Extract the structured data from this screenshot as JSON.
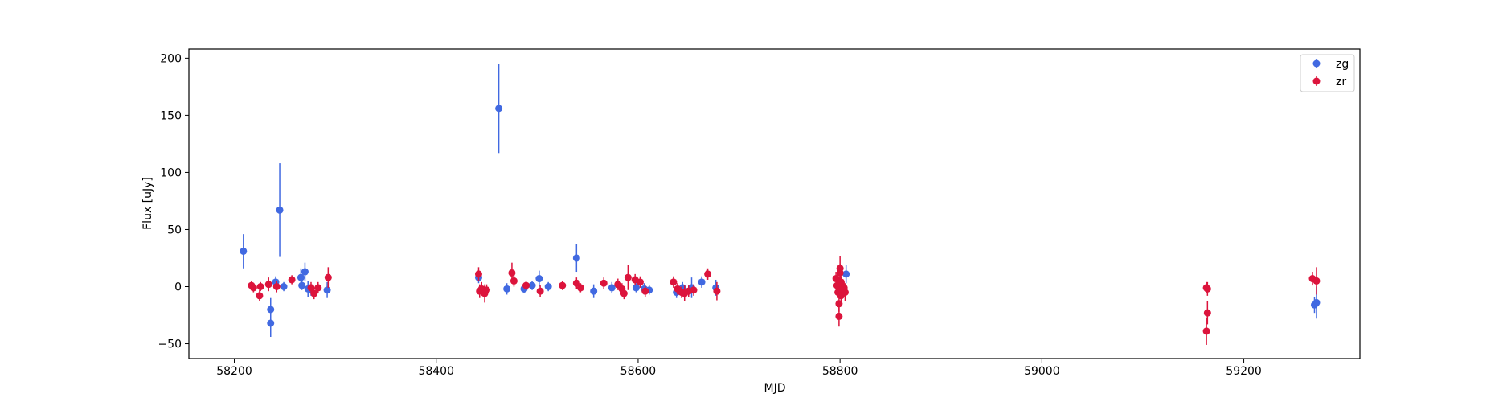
{
  "chart_data": {
    "type": "scatter",
    "xlabel": "MJD",
    "ylabel": "Flux [uJy]",
    "xlim": [
      58155,
      59315
    ],
    "ylim": [
      -63,
      208
    ],
    "x_ticks": [
      58200,
      58400,
      58600,
      58800,
      59000,
      59200
    ],
    "y_ticks": [
      -50,
      0,
      50,
      100,
      150,
      200
    ],
    "grid": false,
    "legend_position": "top-right",
    "series": [
      {
        "name": "zg",
        "color": "#4169E1",
        "points": [
          {
            "x": 58209,
            "y": 31,
            "err": 15
          },
          {
            "x": 58236,
            "y": -20,
            "err": 10
          },
          {
            "x": 58236,
            "y": -32,
            "err": 12
          },
          {
            "x": 58241,
            "y": 4,
            "err": 5
          },
          {
            "x": 58245,
            "y": 67,
            "err": 41
          },
          {
            "x": 58249,
            "y": 0,
            "err": 4
          },
          {
            "x": 58266,
            "y": 8,
            "err": 8
          },
          {
            "x": 58270,
            "y": 13,
            "err": 8
          },
          {
            "x": 58273,
            "y": -2,
            "err": 7
          },
          {
            "x": 58276,
            "y": -3,
            "err": 5
          },
          {
            "x": 58292,
            "y": -3,
            "err": 7
          },
          {
            "x": 58442,
            "y": 8,
            "err": 5
          },
          {
            "x": 58462,
            "y": 156,
            "err": 39
          },
          {
            "x": 58470,
            "y": -2,
            "err": 5
          },
          {
            "x": 58487,
            "y": -2,
            "err": 4
          },
          {
            "x": 58495,
            "y": 1,
            "err": 4
          },
          {
            "x": 58502,
            "y": 7,
            "err": 7
          },
          {
            "x": 58511,
            "y": 0,
            "err": 4
          },
          {
            "x": 58539,
            "y": 25,
            "err": 12
          },
          {
            "x": 58556,
            "y": -4,
            "err": 6
          },
          {
            "x": 58574,
            "y": -1,
            "err": 5
          },
          {
            "x": 58598,
            "y": -1,
            "err": 4
          },
          {
            "x": 58606,
            "y": -2,
            "err": 5
          },
          {
            "x": 58611,
            "y": -3,
            "err": 4
          },
          {
            "x": 58638,
            "y": -5,
            "err": 5
          },
          {
            "x": 58644,
            "y": -1,
            "err": 5
          },
          {
            "x": 58653,
            "y": -1,
            "err": 9
          },
          {
            "x": 58663,
            "y": 4,
            "err": 5
          },
          {
            "x": 58677,
            "y": -1,
            "err": 7
          },
          {
            "x": 58806,
            "y": 11,
            "err": 8
          },
          {
            "x": 58267,
            "y": 1,
            "err": 4
          },
          {
            "x": 59270,
            "y": -16,
            "err": 7
          },
          {
            "x": 59272,
            "y": -14,
            "err": 14
          }
        ]
      },
      {
        "name": "zr",
        "color": "#DC143C",
        "points": [
          {
            "x": 58217,
            "y": 1,
            "err": 4
          },
          {
            "x": 58219,
            "y": -1,
            "err": 4
          },
          {
            "x": 58225,
            "y": -8,
            "err": 5
          },
          {
            "x": 58226,
            "y": 0,
            "err": 4
          },
          {
            "x": 58234,
            "y": 2,
            "err": 6
          },
          {
            "x": 58242,
            "y": 0,
            "err": 5
          },
          {
            "x": 58257,
            "y": 6,
            "err": 4
          },
          {
            "x": 58276,
            "y": -1,
            "err": 5
          },
          {
            "x": 58279,
            "y": -6,
            "err": 5
          },
          {
            "x": 58283,
            "y": -1,
            "err": 5
          },
          {
            "x": 58293,
            "y": 8,
            "err": 9
          },
          {
            "x": 58442,
            "y": 11,
            "err": 6
          },
          {
            "x": 58443,
            "y": -4,
            "err": 6
          },
          {
            "x": 58445,
            "y": -2,
            "err": 6
          },
          {
            "x": 58448,
            "y": -6,
            "err": 8
          },
          {
            "x": 58450,
            "y": -3,
            "err": 5
          },
          {
            "x": 58475,
            "y": 12,
            "err": 9
          },
          {
            "x": 58477,
            "y": 5,
            "err": 5
          },
          {
            "x": 58489,
            "y": 1,
            "err": 4
          },
          {
            "x": 58503,
            "y": -4,
            "err": 5
          },
          {
            "x": 58525,
            "y": 1,
            "err": 4
          },
          {
            "x": 58539,
            "y": 3,
            "err": 5
          },
          {
            "x": 58543,
            "y": -1,
            "err": 4
          },
          {
            "x": 58566,
            "y": 3,
            "err": 5
          },
          {
            "x": 58580,
            "y": 2,
            "err": 5
          },
          {
            "x": 58584,
            "y": -2,
            "err": 5
          },
          {
            "x": 58586,
            "y": -6,
            "err": 5
          },
          {
            "x": 58590,
            "y": 8,
            "err": 11
          },
          {
            "x": 58597,
            "y": 6,
            "err": 5
          },
          {
            "x": 58602,
            "y": 4,
            "err": 5
          },
          {
            "x": 58607,
            "y": -4,
            "err": 5
          },
          {
            "x": 58635,
            "y": 4,
            "err": 5
          },
          {
            "x": 58639,
            "y": -2,
            "err": 5
          },
          {
            "x": 58643,
            "y": -5,
            "err": 5
          },
          {
            "x": 58646,
            "y": -6,
            "err": 7
          },
          {
            "x": 58650,
            "y": -4,
            "err": 5
          },
          {
            "x": 58655,
            "y": -3,
            "err": 5
          },
          {
            "x": 58669,
            "y": 11,
            "err": 5
          },
          {
            "x": 58678,
            "y": -4,
            "err": 8
          },
          {
            "x": 58796,
            "y": 7,
            "err": 6
          },
          {
            "x": 58797,
            "y": 1,
            "err": 5
          },
          {
            "x": 58798,
            "y": -5,
            "err": 5
          },
          {
            "x": 58799,
            "y": -15,
            "err": 7
          },
          {
            "x": 58799,
            "y": -26,
            "err": 9
          },
          {
            "x": 58800,
            "y": 12,
            "err": 8
          },
          {
            "x": 58800,
            "y": 16,
            "err": 11
          },
          {
            "x": 58801,
            "y": 4,
            "err": 5
          },
          {
            "x": 58801,
            "y": -8,
            "err": 6
          },
          {
            "x": 58802,
            "y": -2,
            "err": 6
          },
          {
            "x": 58804,
            "y": -1,
            "err": 5
          },
          {
            "x": 58805,
            "y": -5,
            "err": 8
          },
          {
            "x": 59163,
            "y": -1,
            "err": 5
          },
          {
            "x": 59164,
            "y": -2,
            "err": 6
          },
          {
            "x": 59164,
            "y": -23,
            "err": 10
          },
          {
            "x": 59163,
            "y": -39,
            "err": 12
          },
          {
            "x": 59268,
            "y": 7,
            "err": 6
          },
          {
            "x": 59272,
            "y": 5,
            "err": 12
          }
        ]
      }
    ]
  }
}
